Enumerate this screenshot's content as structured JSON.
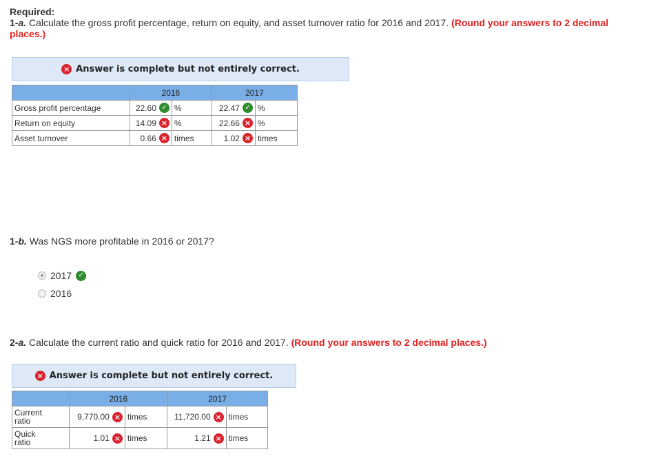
{
  "required_label": "Required:",
  "q1a": {
    "prefix": "1-",
    "letter": "a.",
    "text": " Calculate the gross profit percentage, return on equity, and asset turnover ratio for 2016 and 2017.",
    "note": "(Round your answers to 2 decimal places.)",
    "note_line2": "decimal places.)"
  },
  "banner1": {
    "text": "Answer is complete but not entirely correct."
  },
  "table1": {
    "headers": [
      "",
      "2016",
      "2017"
    ],
    "rows": [
      {
        "label": "Gross profit percentage",
        "v2016": "22.60",
        "s2016": "correct",
        "u2016": "%",
        "v2017": "22.47",
        "s2017": "correct",
        "u2017": "%"
      },
      {
        "label": "Return on equity",
        "v2016": "14.09",
        "s2016": "incorrect",
        "u2016": "%",
        "v2017": "22.66",
        "s2017": "incorrect",
        "u2017": "%"
      },
      {
        "label": "Asset turnover",
        "v2016": "0.66",
        "s2016": "incorrect",
        "u2016": "times",
        "v2017": "1.02",
        "s2017": "incorrect",
        "u2017": "times"
      }
    ]
  },
  "q1b": {
    "prefix": "1-",
    "letter": "b.",
    "text": " Was NGS more profitable in 2016 or 2017?"
  },
  "options": [
    {
      "label": "2017",
      "selected": true,
      "status": "correct"
    },
    {
      "label": "2016",
      "selected": false
    }
  ],
  "q2a": {
    "prefix": "2-",
    "letter": "a.",
    "text": " Calculate the current ratio and quick ratio for 2016 and 2017.",
    "note": "(Round your answers to 2 decimal places.)"
  },
  "banner2": {
    "text": "Answer is complete but not entirely correct."
  },
  "table2": {
    "headers": [
      "",
      "2016",
      "2017"
    ],
    "rows": [
      {
        "label_l1": "Current",
        "label_l2": "ratio",
        "v2016": "9,770.00",
        "u2016": "times",
        "v2017": "11,720.00",
        "u2017": "times"
      },
      {
        "label_l1": "Quick",
        "label_l2": "ratio",
        "v2016": "1.01",
        "u2016": "times",
        "v2017": "1.21",
        "u2017": "times"
      }
    ]
  },
  "icons": {
    "incorrect": "×",
    "correct": "✓"
  },
  "colors": {
    "accent_red": "#e02020",
    "banner_bg": "#dde9f7",
    "header_blue": "#7aaee6",
    "correct_green": "#2e8b2e",
    "incorrect_red": "#d9232d"
  }
}
